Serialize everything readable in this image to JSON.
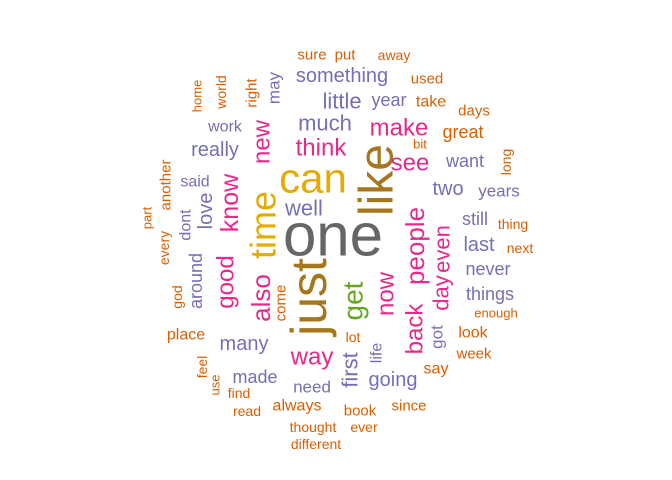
{
  "palette": {
    "orange": "#D95F02",
    "purple": "#7570B3",
    "pink": "#E7298A",
    "green": "#66A61E",
    "gold": "#E6AB02",
    "brown": "#A6761D",
    "gray": "#666666"
  },
  "words": [
    {
      "text": "one",
      "weight": 100,
      "color": "gray"
    },
    {
      "text": "just",
      "weight": 88,
      "color": "brown"
    },
    {
      "text": "like",
      "weight": 85,
      "color": "brown"
    },
    {
      "text": "can",
      "weight": 78,
      "color": "gold"
    },
    {
      "text": "time",
      "weight": 64,
      "color": "gold"
    },
    {
      "text": "get",
      "weight": 56,
      "color": "green"
    },
    {
      "text": "people",
      "weight": 50,
      "color": "pink"
    },
    {
      "text": "also",
      "weight": 48,
      "color": "pink"
    },
    {
      "text": "know",
      "weight": 46,
      "color": "pink"
    },
    {
      "text": "now",
      "weight": 46,
      "color": "pink"
    },
    {
      "text": "good",
      "weight": 44,
      "color": "pink"
    },
    {
      "text": "back",
      "weight": 44,
      "color": "pink"
    },
    {
      "text": "think",
      "weight": 44,
      "color": "pink"
    },
    {
      "text": "make",
      "weight": 42,
      "color": "pink"
    },
    {
      "text": "way",
      "weight": 42,
      "color": "pink"
    },
    {
      "text": "new",
      "weight": 40,
      "color": "pink"
    },
    {
      "text": "even",
      "weight": 40,
      "color": "pink"
    },
    {
      "text": "see",
      "weight": 40,
      "color": "pink"
    },
    {
      "text": "day",
      "weight": 40,
      "color": "pink"
    },
    {
      "text": "first",
      "weight": 36,
      "color": "purple"
    },
    {
      "text": "much",
      "weight": 35,
      "color": "purple"
    },
    {
      "text": "well",
      "weight": 34,
      "color": "purple"
    },
    {
      "text": "love",
      "weight": 33,
      "color": "purple"
    },
    {
      "text": "little",
      "weight": 32,
      "color": "purple"
    },
    {
      "text": "something",
      "weight": 31,
      "color": "purple"
    },
    {
      "text": "really",
      "weight": 31,
      "color": "purple"
    },
    {
      "text": "many",
      "weight": 31,
      "color": "purple"
    },
    {
      "text": "going",
      "weight": 30,
      "color": "purple"
    },
    {
      "text": "two",
      "weight": 30,
      "color": "purple"
    },
    {
      "text": "last",
      "weight": 30,
      "color": "purple"
    },
    {
      "text": "never",
      "weight": 29,
      "color": "purple"
    },
    {
      "text": "things",
      "weight": 29,
      "color": "purple"
    },
    {
      "text": "around",
      "weight": 28,
      "color": "purple"
    },
    {
      "text": "made",
      "weight": 28,
      "color": "purple"
    },
    {
      "text": "year",
      "weight": 28,
      "color": "purple"
    },
    {
      "text": "want",
      "weight": 28,
      "color": "purple"
    },
    {
      "text": "great",
      "weight": 28,
      "color": "orange"
    },
    {
      "text": "still",
      "weight": 26,
      "color": "purple"
    },
    {
      "text": "got",
      "weight": 26,
      "color": "purple"
    },
    {
      "text": "may",
      "weight": 26,
      "color": "purple"
    },
    {
      "text": "years",
      "weight": 24,
      "color": "purple"
    },
    {
      "text": "need",
      "weight": 24,
      "color": "purple"
    },
    {
      "text": "dont",
      "weight": 24,
      "color": "purple"
    },
    {
      "text": "life",
      "weight": 24,
      "color": "purple"
    },
    {
      "text": "work",
      "weight": 23,
      "color": "purple"
    },
    {
      "text": "said",
      "weight": 23,
      "color": "purple"
    },
    {
      "text": "look",
      "weight": 23,
      "color": "orange"
    },
    {
      "text": "always",
      "weight": 22,
      "color": "orange"
    },
    {
      "text": "take",
      "weight": 22,
      "color": "orange"
    },
    {
      "text": "say",
      "weight": 22,
      "color": "orange"
    },
    {
      "text": "place",
      "weight": 22,
      "color": "orange"
    },
    {
      "text": "come",
      "weight": 21,
      "color": "orange"
    },
    {
      "text": "right",
      "weight": 21,
      "color": "orange"
    },
    {
      "text": "lot",
      "weight": 20,
      "color": "orange"
    },
    {
      "text": "since",
      "weight": 20,
      "color": "orange"
    },
    {
      "text": "book",
      "weight": 20,
      "color": "orange"
    },
    {
      "text": "another",
      "weight": 20,
      "color": "orange"
    },
    {
      "text": "used",
      "weight": 20,
      "color": "orange"
    },
    {
      "text": "days",
      "weight": 20,
      "color": "orange"
    },
    {
      "text": "sure",
      "weight": 20,
      "color": "orange"
    },
    {
      "text": "put",
      "weight": 20,
      "color": "orange"
    },
    {
      "text": "week",
      "weight": 19,
      "color": "orange"
    },
    {
      "text": "feel",
      "weight": 19,
      "color": "orange"
    },
    {
      "text": "find",
      "weight": 19,
      "color": "orange"
    },
    {
      "text": "read",
      "weight": 19,
      "color": "orange"
    },
    {
      "text": "thought",
      "weight": 19,
      "color": "orange"
    },
    {
      "text": "long",
      "weight": 18,
      "color": "orange"
    },
    {
      "text": "thing",
      "weight": 18,
      "color": "orange"
    },
    {
      "text": "next",
      "weight": 18,
      "color": "orange"
    },
    {
      "text": "every",
      "weight": 18,
      "color": "orange"
    },
    {
      "text": "god",
      "weight": 18,
      "color": "orange"
    },
    {
      "text": "world",
      "weight": 18,
      "color": "orange"
    },
    {
      "text": "enough",
      "weight": 17,
      "color": "orange"
    },
    {
      "text": "use",
      "weight": 17,
      "color": "orange"
    },
    {
      "text": "ever",
      "weight": 17,
      "color": "orange"
    },
    {
      "text": "different",
      "weight": 17,
      "color": "orange"
    },
    {
      "text": "away",
      "weight": 17,
      "color": "orange"
    },
    {
      "text": "bit",
      "weight": 17,
      "color": "orange"
    },
    {
      "text": "home",
      "weight": 16,
      "color": "orange"
    },
    {
      "text": "part",
      "weight": 16,
      "color": "orange"
    }
  ]
}
